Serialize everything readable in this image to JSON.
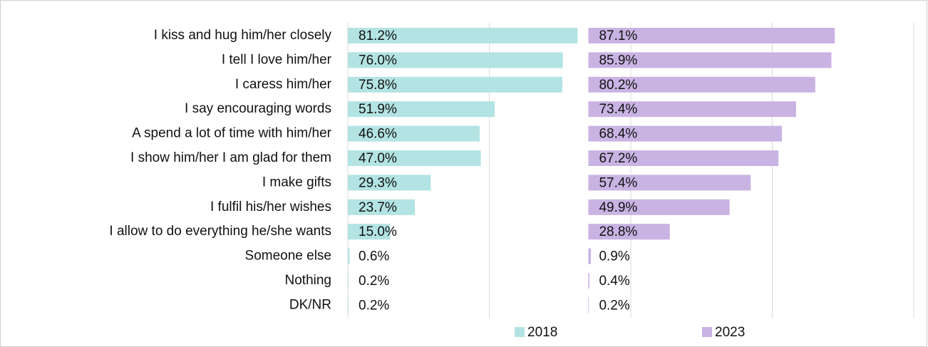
{
  "chart_data": {
    "type": "bar",
    "orientation": "horizontal",
    "categories": [
      "I kiss and hug him/her closely",
      "I tell I love him/her",
      "I caress him/her",
      "I say encouraging words",
      "A spend a lot of time with him/her",
      "I show him/her I am glad for them",
      "I make gifts",
      "I fulfil his/her wishes",
      "I allow to do everything he/she wants",
      "Someone else",
      "Nothing",
      "DK/NR"
    ],
    "series": [
      {
        "name": "2018",
        "color": "#b3e3e3",
        "values": [
          81.2,
          76.0,
          75.8,
          51.9,
          46.6,
          47.0,
          29.3,
          23.7,
          15.0,
          0.6,
          0.2,
          0.2
        ],
        "value_labels": [
          "81.2%",
          "76.0%",
          "75.8%",
          "51.9%",
          "46.6%",
          "47.0%",
          "29.3%",
          "23.7%",
          "15.0%",
          "0.6%",
          "0.2%",
          "0.2%"
        ]
      },
      {
        "name": "2023",
        "color": "#c9b3e3",
        "values": [
          87.1,
          85.9,
          80.2,
          73.4,
          68.4,
          67.2,
          57.4,
          49.9,
          28.8,
          0.9,
          0.4,
          0.2
        ],
        "value_labels": [
          "87.1%",
          "85.9%",
          "80.2%",
          "73.4%",
          "68.4%",
          "67.2%",
          "57.4%",
          "49.9%",
          "28.8%",
          "0.9%",
          "0.4%",
          "0.2%"
        ]
      }
    ],
    "xlim": [
      0,
      200
    ],
    "xticks": [
      0,
      50,
      100,
      150,
      200
    ],
    "grid": true,
    "legend": "bottom"
  }
}
